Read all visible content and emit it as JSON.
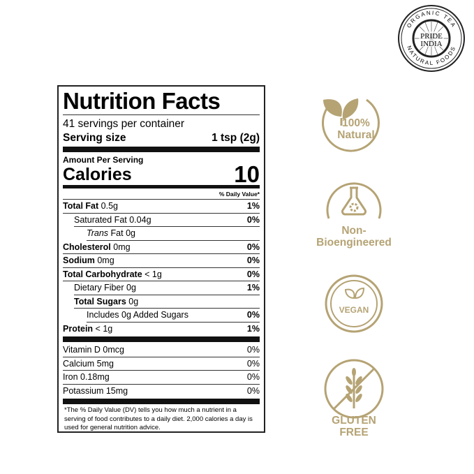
{
  "logo": {
    "text_top": "ORGANIC TEA",
    "text_center": "PRIDE INDIA",
    "text_bottom": "NATURAL FOODS"
  },
  "nutrition": {
    "title": "Nutrition Facts",
    "servings": "41 servings per container",
    "serving_size_label": "Serving size",
    "serving_size_value": "1 tsp (2g)",
    "amount_per_serving": "Amount Per Serving",
    "calories_label": "Calories",
    "calories_value": "10",
    "dv_header": "% Daily Value*",
    "rows": [
      {
        "label": "Total Fat",
        "amount": "0.5g",
        "dv": "1%"
      },
      {
        "label": "Saturated Fat",
        "amount": "0.04g",
        "dv": "0%"
      },
      {
        "label": "Trans",
        "label2": "Fat",
        "amount": "0g",
        "dv": ""
      },
      {
        "label": "Cholesterol",
        "amount": "0mg",
        "dv": "0%"
      },
      {
        "label": "Sodium",
        "amount": "0mg",
        "dv": "0%"
      },
      {
        "label": "Total Carbohydrate",
        "amount": "< 1g",
        "dv": "0%"
      },
      {
        "label": "Dietary Fiber",
        "amount": "0g",
        "dv": "1%"
      },
      {
        "label": "Total Sugars",
        "amount": "0g",
        "dv": ""
      },
      {
        "label": "Includes 0g Added Sugars",
        "amount": "",
        "dv": "0%"
      },
      {
        "label": "Protein",
        "amount": "< 1g",
        "dv": "1%"
      }
    ],
    "vitamins": [
      {
        "label": "Vitamin D 0mcg",
        "dv": "0%"
      },
      {
        "label": "Calcium 5mg",
        "dv": "0%"
      },
      {
        "label": "Iron 0.18mg",
        "dv": "0%"
      },
      {
        "label": "Potassium 15mg",
        "dv": "0%"
      }
    ],
    "footnote": "*The % Daily Value (DV) tells you how much a nutrient in a serving of food contributes to a daily diet. 2,000 calories a day is used for general nutrition advice."
  },
  "badges": {
    "color": "#b5a374",
    "natural": "100% Natural",
    "natural_icon": "leaf-icon",
    "non_bio": "Non-Bioengineered",
    "non_bio_icon": "flask-gear-icon",
    "vegan": "VEGAN",
    "vegan_icon": "leaf-icon",
    "gluten": "GLUTEN FREE",
    "gluten_icon": "wheat-crossed-icon"
  }
}
